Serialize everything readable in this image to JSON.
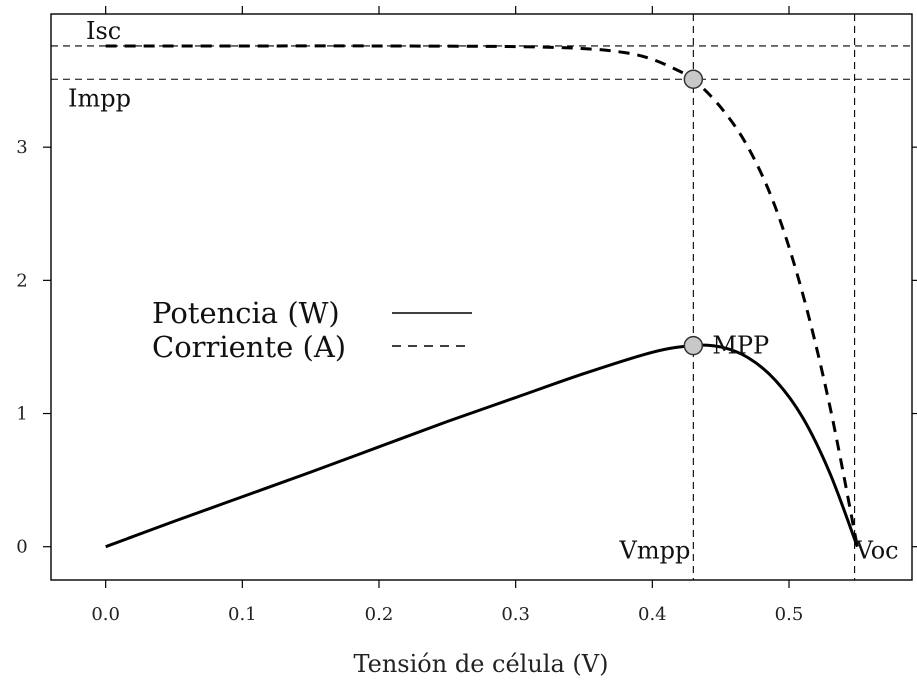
{
  "chart_data": {
    "type": "line",
    "title": "",
    "xlabel": "Tensión de célula (V)",
    "ylabel": "",
    "xlim": [
      -0.04,
      0.59
    ],
    "ylim": [
      -0.25,
      4.0
    ],
    "x_ticks": [
      0.0,
      0.1,
      0.2,
      0.3,
      0.4,
      0.5
    ],
    "x_tick_labels": [
      "0.0",
      "0.1",
      "0.2",
      "0.3",
      "0.4",
      "0.5"
    ],
    "y_ticks": [
      0,
      1,
      2,
      3
    ],
    "y_tick_labels": [
      "0",
      "1",
      "2",
      "3"
    ],
    "grid": false,
    "legend": {
      "placement": "center-left",
      "entries": [
        {
          "label": "Potencia (W)",
          "style": "solid"
        },
        {
          "label": "Corriente (A)",
          "style": "dashed"
        }
      ]
    },
    "series": [
      {
        "name": "Potencia (W)",
        "style": "solid",
        "x": [
          0.0,
          0.05,
          0.1,
          0.15,
          0.2,
          0.25,
          0.3,
          0.35,
          0.4,
          0.43,
          0.45,
          0.47,
          0.49,
          0.51,
          0.53,
          0.55
        ],
        "y": [
          0.0,
          0.19,
          0.375,
          0.56,
          0.75,
          0.94,
          1.12,
          1.3,
          1.46,
          1.51,
          1.5,
          1.42,
          1.25,
          0.97,
          0.55,
          0.0
        ]
      },
      {
        "name": "Corriente (A)",
        "style": "dashed",
        "x": [
          0.0,
          0.1,
          0.2,
          0.3,
          0.35,
          0.38,
          0.4,
          0.42,
          0.43,
          0.45,
          0.47,
          0.49,
          0.51,
          0.53,
          0.55
        ],
        "y": [
          3.76,
          3.76,
          3.76,
          3.755,
          3.74,
          3.71,
          3.66,
          3.57,
          3.51,
          3.3,
          3.0,
          2.55,
          1.9,
          1.05,
          0.0
        ]
      }
    ],
    "reference_lines": {
      "Isc": 3.76,
      "Impp": 3.51,
      "Vmpp": 0.43,
      "Voc": 0.548
    },
    "points": [
      {
        "label": "MPP",
        "x": 0.43,
        "y": 1.51
      },
      {
        "label": "",
        "x": 0.43,
        "y": 3.51
      }
    ],
    "annotations": {
      "isc_label": "Isc",
      "impp_label": "Impp",
      "vmpp_label": "Vmpp",
      "voc_label": "Voc",
      "mpp_label": "MPP"
    },
    "colors": {
      "line": "#000000",
      "marker_fill": "#c8c8c8",
      "marker_stroke": "#333333"
    }
  }
}
